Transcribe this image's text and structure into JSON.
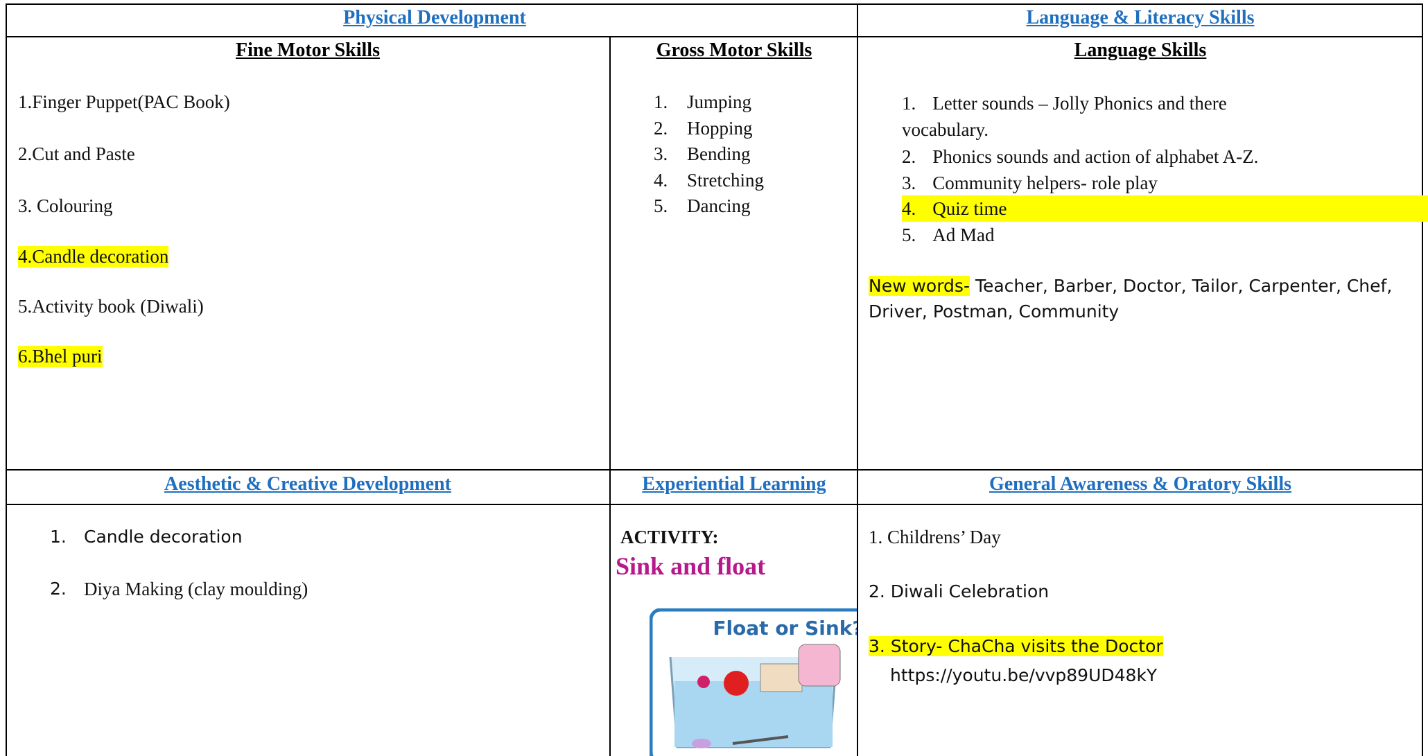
{
  "table": {
    "headers": [
      "Physical Development",
      "Language & Literacy Skills",
      "Aesthetic & Creative Development",
      "Experiential Learning",
      "General Awareness & Oratory Skills"
    ],
    "fine_motor": {
      "title": "Fine Motor Skills",
      "items": [
        {
          "text": "1.Finger Puppet(PAC Book)",
          "highlight": false
        },
        {
          "text": "2.Cut and Paste",
          "highlight": false
        },
        {
          "text": "3. Colouring",
          "highlight": false
        },
        {
          "text": "4.Candle decoration",
          "highlight": true
        },
        {
          "text": "5.Activity book (Diwali)",
          "highlight": false
        },
        {
          "text": "6.Bhel puri",
          "highlight": true
        }
      ]
    },
    "gross_motor": {
      "title": "Gross Motor Skills",
      "items": [
        {
          "num": "1.",
          "text": "Jumping"
        },
        {
          "num": "2.",
          "text": "Hopping"
        },
        {
          "num": "3.",
          "text": "Bending"
        },
        {
          "num": "4.",
          "text": "Stretching"
        },
        {
          "num": "5.",
          "text": "Dancing"
        }
      ]
    },
    "language": {
      "title": "Language Skills",
      "items": [
        {
          "num": "1.",
          "text": "Letter sounds – Jolly Phonics and there vocabulary.",
          "highlight": false
        },
        {
          "num": "2.",
          "text": "Phonics sounds and action of alphabet A-Z.",
          "highlight": false
        },
        {
          "num": "3.",
          "text": "Community helpers- role play",
          "highlight": false
        },
        {
          "num": "4.",
          "text": "Quiz time",
          "highlight": true
        },
        {
          "num": "5.",
          "text": "Ad Mad",
          "highlight": false
        }
      ],
      "new_words_label": "New words-",
      "new_words": "Teacher, Barber, Doctor, Tailor, Carpenter, Chef, Driver, Postman, Community"
    },
    "aesthetic": {
      "items": [
        {
          "num": "1.",
          "text": "Candle decoration"
        },
        {
          "num": "2.",
          "text": "Diya Making (clay moulding)"
        }
      ]
    },
    "experiential": {
      "label": "ACTIVITY:",
      "activity": "Sink and float",
      "image_caption": "Float or Sink?"
    },
    "general": {
      "items": [
        {
          "text": "1. Childrens’ Day",
          "highlight": false
        },
        {
          "text": "2. Diwali Celebration",
          "highlight": false
        },
        {
          "text": "3. Story- ChaCha visits the Doctor",
          "highlight": true
        }
      ],
      "link": "https://youtu.be/vvp89UD48kY"
    }
  }
}
